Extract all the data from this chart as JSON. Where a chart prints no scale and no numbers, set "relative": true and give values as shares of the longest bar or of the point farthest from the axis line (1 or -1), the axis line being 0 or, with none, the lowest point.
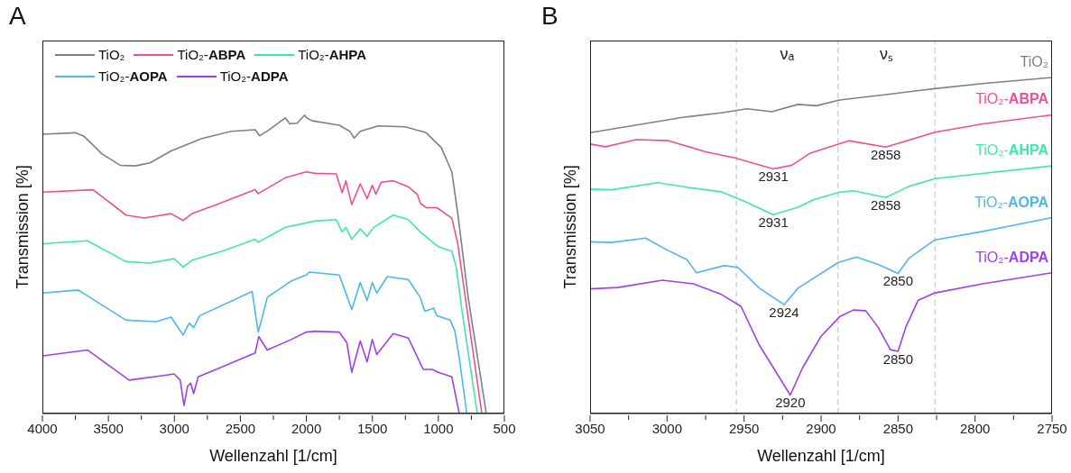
{
  "chart_data": [
    {
      "type": "line",
      "title": "A",
      "xlabel": "Wellenzahl [1/cm]",
      "ylabel": "Transmission [%]",
      "relative": true,
      "legend": "top",
      "tick_labels": "x",
      "xlim": [
        4000,
        500
      ],
      "xticks": [
        4000,
        {
          "value": 3750,
          "label": null
        },
        3500,
        {
          "value": 3250,
          "label": null
        },
        3000,
        {
          "value": 2750,
          "label": null
        },
        2500,
        {
          "value": 2250,
          "label": null
        },
        2000,
        {
          "value": 1750,
          "label": null
        },
        1500,
        {
          "value": 1250,
          "label": null
        },
        1000,
        {
          "value": 750,
          "label": null
        },
        500
      ],
      "series": [
        {
          "name": "TiO₂",
          "color": "#808080",
          "x": [
            4000,
            3752,
            3684,
            3548,
            3411,
            3297,
            3184,
            3025,
            2797,
            2569,
            2388,
            2354,
            2297,
            2160,
            2126,
            2070,
            2013,
            1999,
            1955,
            1751,
            1672,
            1638,
            1592,
            1456,
            1251,
            1092,
            978,
            898,
            853,
            774,
            637
          ],
          "values": [
            0.936,
            0.941,
            0.929,
            0.87,
            0.832,
            0.83,
            0.84,
            0.88,
            0.921,
            0.946,
            0.951,
            0.931,
            0.946,
            0.991,
            0.971,
            0.973,
            1,
            0.991,
            0.981,
            0.966,
            0.946,
            0.923,
            0.946,
            0.964,
            0.961,
            0.941,
            0.891,
            0.81,
            0.67,
            0.389,
            0
          ]
        },
        {
          "name": "TiO₂-ABPA",
          "color": "#ec4f96",
          "x": [
            4000,
            3616,
            3366,
            3229,
            3025,
            2934,
            2866,
            2683,
            2388,
            2365,
            2160,
            2001,
            1933,
            1774,
            1729,
            1701,
            1656,
            1592,
            1540,
            1501,
            1474,
            1433,
            1342,
            1228,
            1160,
            1137,
            1092,
            1012,
            898,
            853,
            796,
            671
          ],
          "values": [
            0.742,
            0.75,
            0.665,
            0.655,
            0.67,
            0.647,
            0.67,
            0.7,
            0.75,
            0.737,
            0.79,
            0.81,
            0.805,
            0.803,
            0.74,
            0.78,
            0.7,
            0.77,
            0.72,
            0.765,
            0.735,
            0.775,
            0.78,
            0.76,
            0.735,
            0.705,
            0.69,
            0.69,
            0.655,
            0.569,
            0.389,
            0
          ]
        },
        {
          "name": "TiO₂-AHPA",
          "color": "#3ee8a8",
          "x": [
            4000,
            3659,
            3366,
            3184,
            3002,
            2934,
            2866,
            2638,
            2388,
            2365,
            2160,
            2001,
            1933,
            1774,
            1729,
            1701,
            1656,
            1592,
            1540,
            1490,
            1342,
            1228,
            1137,
            1001,
            898,
            864,
            819,
            705
          ],
          "values": [
            0.569,
            0.579,
            0.509,
            0.504,
            0.519,
            0.491,
            0.514,
            0.544,
            0.584,
            0.574,
            0.624,
            0.639,
            0.645,
            0.65,
            0.609,
            0.624,
            0.584,
            0.619,
            0.594,
            0.624,
            0.665,
            0.65,
            0.609,
            0.559,
            0.544,
            0.489,
            0.338,
            0
          ]
        },
        {
          "name": "TiO₂-AOPA",
          "color": "#4cb8e8",
          "x": [
            4000,
            3729,
            3366,
            3138,
            3025,
            2979,
            2934,
            2888,
            2854,
            2808,
            2411,
            2365,
            2331,
            2297,
            2115,
            2001,
            1978,
            1751,
            1656,
            1592,
            1540,
            1501,
            1467,
            1387,
            1228,
            1137,
            1103,
            1035,
            1012,
            910,
            876,
            842,
            785
          ],
          "values": [
            0.404,
            0.414,
            0.313,
            0.308,
            0.323,
            0.293,
            0.263,
            0.303,
            0.288,
            0.328,
            0.409,
            0.273,
            0.328,
            0.389,
            0.444,
            0.464,
            0.474,
            0.464,
            0.349,
            0.439,
            0.379,
            0.439,
            0.404,
            0.459,
            0.449,
            0.389,
            0.343,
            0.353,
            0.328,
            0.313,
            0.278,
            0.188,
            0
          ]
        },
        {
          "name": "TiO₂-ADPA",
          "color": "#a040e8",
          "x": [
            4000,
            3659,
            3343,
            3093,
            3002,
            2956,
            2927,
            2900,
            2877,
            2854,
            2820,
            2388,
            2361,
            2297,
            2115,
            2001,
            1933,
            1751,
            1694,
            1656,
            1592,
            1540,
            1501,
            1467,
            1342,
            1228,
            1115,
            1046,
            1001,
            898,
            842
          ],
          "values": [
            0.193,
            0.213,
            0.112,
            0.127,
            0.133,
            0.112,
            0.027,
            0.092,
            0.102,
            0.067,
            0.123,
            0.203,
            0.258,
            0.213,
            0.248,
            0.273,
            0.276,
            0.273,
            0.238,
            0.138,
            0.243,
            0.173,
            0.248,
            0.198,
            0.268,
            0.253,
            0.148,
            0.148,
            0.138,
            0.123,
            0
          ]
        }
      ]
    },
    {
      "type": "line",
      "title": "B",
      "xlabel": "Wellenzahl [1/cm]",
      "ylabel": "Transmission [%]",
      "relative": true,
      "tick_labels": "x",
      "xlim": [
        3050,
        2750
      ],
      "xticks": [
        3050,
        {
          "value": 3025,
          "label": null
        },
        3000,
        {
          "value": 2975,
          "label": null
        },
        2950,
        {
          "value": 2925,
          "label": null
        },
        2900,
        {
          "value": 2875,
          "label": null
        },
        2850,
        {
          "value": 2825,
          "label": null
        },
        2800,
        {
          "value": 2775,
          "label": null
        },
        2750
      ],
      "ref_lines": [
        {
          "axis": "x",
          "value": 2955,
          "color": "#c8c8c8",
          "line_style": "dashed"
        },
        {
          "axis": "x",
          "value": 2889,
          "color": "#c8c8c8",
          "line_style": "dashed"
        },
        {
          "axis": "x",
          "value": 2826,
          "color": "#c8c8c8",
          "line_style": "dashed"
        }
      ],
      "annotations": [
        "νₐ",
        "νₛ",
        {
          "text": "2931",
          "x": 2931,
          "y": 0.728
        },
        {
          "text": "2931",
          "x": 2931,
          "y": 0.592
        },
        {
          "text": "2924",
          "x": 2924,
          "y": 0.324
        },
        {
          "text": "2920",
          "x": 2920,
          "y": 0.055
        },
        {
          "text": "2858",
          "x": 2858,
          "y": 0.793
        },
        {
          "text": "2858",
          "x": 2858,
          "y": 0.643
        },
        {
          "text": "2850",
          "x": 2850,
          "y": 0.417
        },
        {
          "text": "2850",
          "x": 2850,
          "y": 0.185
        }
      ],
      "series": [
        {
          "name": "TiO₂",
          "color": "#808080",
          "x": [
            3050,
            3018,
            2989,
            2965,
            2948,
            2932,
            2915,
            2903,
            2888,
            2853,
            2826,
            2795,
            2750
          ],
          "values": [
            0.836,
            0.86,
            0.882,
            0.895,
            0.907,
            0.898,
            0.92,
            0.916,
            0.933,
            0.952,
            0.967,
            0.982,
            1
          ]
        },
        {
          "name": "TiO₂-ABPA",
          "color": "#ec4f96",
          "x": [
            3050,
            3040,
            3020,
            2999,
            2975,
            2956,
            2931,
            2919,
            2907,
            2882,
            2858,
            2826,
            2795,
            2750
          ],
          "values": [
            0.802,
            0.794,
            0.815,
            0.812,
            0.779,
            0.761,
            0.728,
            0.739,
            0.775,
            0.812,
            0.793,
            0.837,
            0.862,
            0.889
          ]
        },
        {
          "name": "TiO₂-AHPA",
          "color": "#3ee8a8",
          "x": [
            3050,
            3036,
            3006,
            2985,
            2965,
            2950,
            2931,
            2915,
            2905,
            2888,
            2879,
            2858,
            2843,
            2826,
            2750
          ],
          "values": [
            0.668,
            0.666,
            0.687,
            0.672,
            0.66,
            0.632,
            0.592,
            0.614,
            0.636,
            0.659,
            0.663,
            0.643,
            0.676,
            0.699,
            0.737
          ]
        },
        {
          "name": "TiO₂-AOPA",
          "color": "#4cb8e8",
          "x": [
            3050,
            3036,
            3014,
            3001,
            2987,
            2981,
            2963,
            2954,
            2940,
            2924,
            2915,
            2889,
            2877,
            2863,
            2850,
            2843,
            2826,
            2795,
            2750
          ],
          "values": [
            0.511,
            0.509,
            0.522,
            0.489,
            0.458,
            0.419,
            0.44,
            0.435,
            0.373,
            0.324,
            0.373,
            0.449,
            0.466,
            0.444,
            0.417,
            0.462,
            0.517,
            0.542,
            0.583
          ]
        },
        {
          "name": "TiO₂-ADPA",
          "color": "#a040e8",
          "x": [
            3050,
            3032,
            3003,
            2983,
            2965,
            2952,
            2940,
            2920,
            2912,
            2900,
            2888,
            2879,
            2871,
            2863,
            2855,
            2850,
            2845,
            2837,
            2826,
            2795,
            2750
          ],
          "values": [
            0.371,
            0.375,
            0.397,
            0.386,
            0.355,
            0.319,
            0.203,
            0.055,
            0.136,
            0.23,
            0.288,
            0.308,
            0.306,
            0.257,
            0.19,
            0.185,
            0.257,
            0.337,
            0.359,
            0.386,
            0.419
          ]
        }
      ]
    }
  ]
}
